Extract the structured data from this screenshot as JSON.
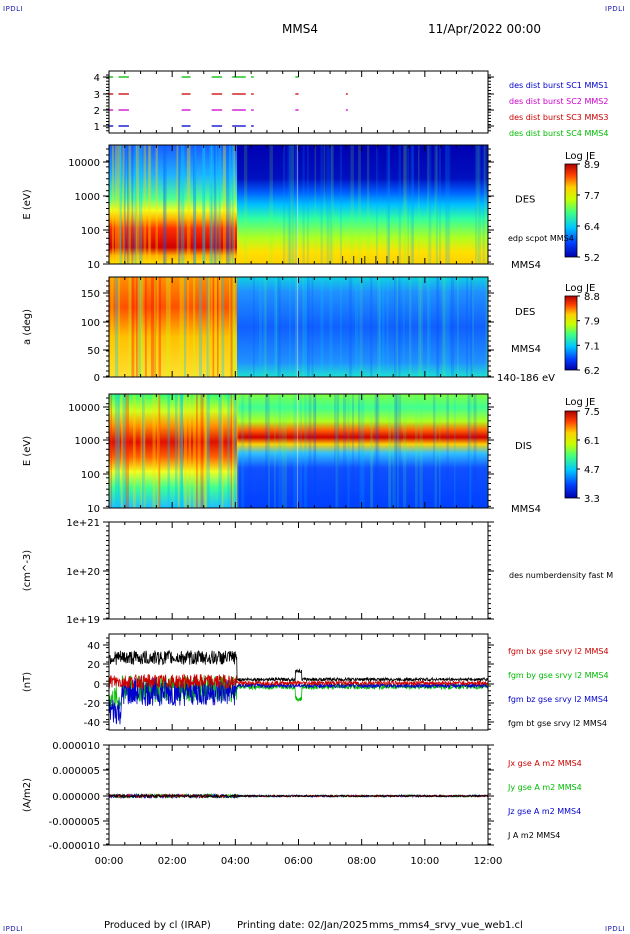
{
  "header": {
    "corner_left": "IPDLI",
    "corner_right": "IPDLI",
    "spacecraft": "MMS4",
    "start_date": "11/Apr/2022 00:00"
  },
  "footer": {
    "produced_by": "Produced by cl (IRAP)",
    "printing_date": "Printing date: 02/Jan/2025",
    "filename": "mms_mms4_srvy_vue_web1.cl",
    "corner_left": "IPDLI",
    "corner_right": "IPDLI"
  },
  "chart_data": [
    {
      "id": "burst-flags",
      "type": "scatter",
      "y_ticks": [
        "4",
        "3",
        "2",
        "1"
      ],
      "legend": [
        {
          "text": "des dist burst SC1 MMS1",
          "color": "#0000cc"
        },
        {
          "text": "des dist burst SC2 MMS2",
          "color": "#cc00cc"
        },
        {
          "text": "des dist burst SC3 MMS3",
          "color": "#cc0000"
        },
        {
          "text": "des dist burst SC4 MMS4",
          "color": "#00bb00"
        }
      ],
      "series": [
        {
          "y": 4,
          "color": "#00bb00",
          "intervals": [
            [
              0.0,
              0.1
            ],
            [
              0.3,
              0.6
            ],
            [
              2.3,
              2.55
            ],
            [
              3.25,
              3.55
            ],
            [
              3.9,
              4.3
            ],
            [
              4.5,
              4.55
            ],
            [
              5.9,
              5.97
            ]
          ]
        },
        {
          "y": 3,
          "color": "#cc0000",
          "intervals": [
            [
              0.0,
              0.1
            ],
            [
              0.3,
              0.6
            ],
            [
              2.3,
              2.55
            ],
            [
              3.25,
              3.55
            ],
            [
              3.9,
              4.3
            ],
            [
              4.5,
              4.55
            ],
            [
              5.9,
              5.97
            ],
            [
              7.5,
              7.53
            ]
          ]
        },
        {
          "y": 2,
          "color": "#cc00cc",
          "intervals": [
            [
              0.0,
              0.1
            ],
            [
              0.3,
              0.6
            ],
            [
              2.3,
              2.55
            ],
            [
              3.25,
              3.55
            ],
            [
              3.9,
              4.3
            ],
            [
              4.5,
              4.55
            ],
            [
              5.9,
              5.97
            ],
            [
              7.5,
              7.53
            ]
          ]
        },
        {
          "y": 1,
          "color": "#0000cc",
          "intervals": [
            [
              0.0,
              0.1
            ],
            [
              0.3,
              0.6
            ],
            [
              2.3,
              2.55
            ],
            [
              3.25,
              3.55
            ],
            [
              3.9,
              4.3
            ],
            [
              4.5,
              4.55
            ]
          ]
        }
      ]
    },
    {
      "id": "des-energy",
      "type": "heatmap",
      "ylabel": "E (eV)",
      "y_ticks": [
        "10000",
        "1000",
        "100",
        "10"
      ],
      "label": "DES",
      "overlay_label": "edp scpot MMS4",
      "spacecraft_label": "MMS4",
      "colorbar": {
        "title": "Log JE",
        "ticks": [
          "8.9",
          "7.7",
          "6.4",
          "5.2"
        ],
        "range": [
          5.2,
          8.9
        ]
      }
    },
    {
      "id": "des-pitch",
      "type": "heatmap",
      "ylabel": "a (deg)",
      "y_ticks": [
        "150",
        "100",
        "50",
        "0"
      ],
      "label": "DES",
      "spacecraft_label": "MMS4",
      "energy_label": "140-186 eV",
      "colorbar": {
        "title": "Log JE",
        "ticks": [
          "8.8",
          "7.9",
          "7.1",
          "6.2"
        ],
        "range": [
          6.2,
          8.8
        ]
      }
    },
    {
      "id": "dis-energy",
      "type": "heatmap",
      "ylabel": "E (eV)",
      "y_ticks": [
        "10000",
        "1000",
        "100",
        "10"
      ],
      "label": "DIS",
      "spacecraft_label": "MMS4",
      "colorbar": {
        "title": "Log JE",
        "ticks": [
          "7.5",
          "6.1",
          "4.7",
          "3.3"
        ],
        "range": [
          3.3,
          7.5
        ]
      }
    },
    {
      "id": "density",
      "type": "line",
      "ylabel": "(cm^-3)",
      "y_ticks": [
        "1e+21",
        "1e+20",
        "1e+19"
      ],
      "legend": [
        {
          "text": "des numberdensity fast M",
          "color": "#000000"
        }
      ]
    },
    {
      "id": "magnetic-field",
      "type": "line",
      "ylabel": "(nT)",
      "y_ticks": [
        "40",
        "20",
        "0",
        "-20",
        "-40"
      ],
      "ylim": [
        -45,
        48
      ],
      "legend": [
        {
          "text": "fgm bx gse srvy l2 MMS4",
          "color": "#cc0000"
        },
        {
          "text": "fgm by gse srvy l2 MMS4",
          "color": "#00bb00"
        },
        {
          "text": "fgm bz gse srvy l2 MMS4",
          "color": "#0000cc"
        },
        {
          "text": "fgm bt gse srvy l2 MMS4",
          "color": "#000000"
        }
      ]
    },
    {
      "id": "current-density",
      "type": "line",
      "ylabel": "(A/m2)",
      "y_ticks": [
        "0.000010",
        "0.000005",
        "0.000000",
        "-0.000005",
        "-0.000010"
      ],
      "ylim": [
        -1e-05,
        1e-05
      ],
      "legend": [
        {
          "text": "Jx gse A m2 MMS4",
          "color": "#cc0000"
        },
        {
          "text": "Jy gse A m2 MMS4",
          "color": "#00bb00"
        },
        {
          "text": "Jz gse A m2 MMS4",
          "color": "#0000cc"
        },
        {
          "text": "J A m2 MMS4",
          "color": "#000000"
        }
      ]
    }
  ],
  "time_axis": {
    "labels": [
      "00:00",
      "02:00",
      "04:00",
      "06:00",
      "08:00",
      "10:00",
      "12:00"
    ],
    "range_hours": [
      0,
      12
    ]
  }
}
